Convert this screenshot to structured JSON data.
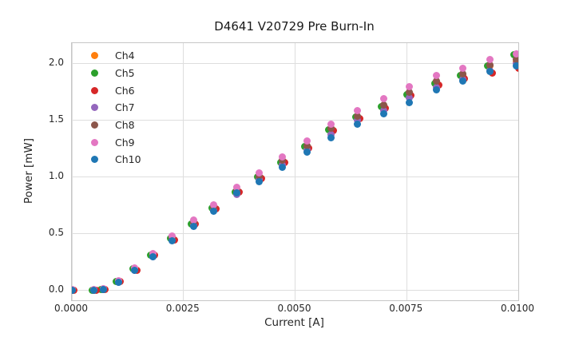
{
  "chart_data": {
    "type": "scatter",
    "title": "D4641 V20729 Pre Burn-In",
    "xlabel": "Current [A]",
    "ylabel": "Power [mW]",
    "xlim": [
      0.0,
      0.01
    ],
    "ylim": [
      -0.085,
      2.183
    ],
    "grid": true,
    "legend_position": "upper-left",
    "xticks": {
      "values": [
        0.0,
        0.0025,
        0.005,
        0.0075,
        0.01
      ],
      "labels": [
        "0.0000",
        "0.0025",
        "0.0050",
        "0.0075",
        "0.0100"
      ]
    },
    "yticks": {
      "values": [
        0.0,
        0.5,
        1.0,
        1.5,
        2.0
      ],
      "labels": [
        "0.0",
        "0.5",
        "1.0",
        "1.5",
        "2.0"
      ]
    },
    "x": [
      0.0,
      0.0005,
      0.0007,
      0.00104,
      0.0014,
      0.00181,
      0.00225,
      0.00272,
      0.00318,
      0.00369,
      0.0042,
      0.00472,
      0.00526,
      0.0058,
      0.0064,
      0.00698,
      0.00755,
      0.00817,
      0.00875,
      0.00936,
      0.00995
    ],
    "series": [
      {
        "name": "Ch4",
        "color": "#ff7f0e",
        "values": [
          0.0,
          0.0,
          0.01,
          0.08,
          0.19,
          0.31,
          0.46,
          0.6,
          0.73,
          0.88,
          1.0,
          1.14,
          1.27,
          1.42,
          1.53,
          1.62,
          1.74,
          1.84,
          1.9,
          1.98,
          2.02
        ]
      },
      {
        "name": "Ch5",
        "color": "#2ca02c",
        "x": [
          0.0,
          0.00046,
          0.00066,
          0.001,
          0.00136,
          0.00177,
          0.00221,
          0.00268,
          0.00314,
          0.00365,
          0.00416,
          0.00468,
          0.00522,
          0.00576,
          0.00636,
          0.00694,
          0.00751,
          0.00813,
          0.00871,
          0.00932,
          0.00991
        ],
        "values": [
          0.0,
          0.0,
          0.01,
          0.08,
          0.19,
          0.31,
          0.46,
          0.59,
          0.73,
          0.87,
          1.0,
          1.13,
          1.27,
          1.42,
          1.53,
          1.62,
          1.73,
          1.83,
          1.9,
          1.98,
          2.08
        ]
      },
      {
        "name": "Ch6",
        "color": "#d62728",
        "x": [
          5e-05,
          0.00055,
          0.00075,
          0.00109,
          0.00145,
          0.00186,
          0.0023,
          0.00277,
          0.00323,
          0.00374,
          0.00425,
          0.00477,
          0.00531,
          0.00585,
          0.00645,
          0.00703,
          0.0076,
          0.00822,
          0.0088,
          0.00941,
          0.01
        ],
        "values": [
          0.0,
          0.0,
          0.01,
          0.08,
          0.18,
          0.31,
          0.45,
          0.59,
          0.72,
          0.87,
          0.99,
          1.13,
          1.26,
          1.41,
          1.52,
          1.61,
          1.72,
          1.81,
          1.87,
          1.92,
          1.96
        ]
      },
      {
        "name": "Ch7",
        "color": "#9467bd",
        "values": [
          0.0,
          0.0,
          0.01,
          0.07,
          0.18,
          0.3,
          0.45,
          0.58,
          0.71,
          0.85,
          0.98,
          1.11,
          1.24,
          1.38,
          1.5,
          1.59,
          1.7,
          1.79,
          1.86,
          1.94,
          2.0
        ]
      },
      {
        "name": "Ch8",
        "color": "#8c564b",
        "values": [
          0.0,
          0.0,
          0.01,
          0.08,
          0.19,
          0.32,
          0.47,
          0.6,
          0.74,
          0.88,
          1.01,
          1.15,
          1.28,
          1.43,
          1.54,
          1.64,
          1.75,
          1.85,
          1.91,
          1.99,
          2.04
        ]
      },
      {
        "name": "Ch9",
        "color": "#e377c2",
        "values": [
          0.01,
          0.01,
          0.02,
          0.09,
          0.2,
          0.33,
          0.48,
          0.62,
          0.76,
          0.91,
          1.04,
          1.18,
          1.32,
          1.47,
          1.59,
          1.69,
          1.8,
          1.9,
          1.96,
          2.04,
          2.09
        ]
      },
      {
        "name": "Ch10",
        "color": "#1f77b4",
        "values": [
          0.0,
          0.0,
          0.01,
          0.07,
          0.18,
          0.3,
          0.44,
          0.57,
          0.7,
          0.86,
          0.96,
          1.09,
          1.22,
          1.35,
          1.47,
          1.56,
          1.66,
          1.77,
          1.85,
          1.93,
          1.98
        ]
      }
    ]
  }
}
